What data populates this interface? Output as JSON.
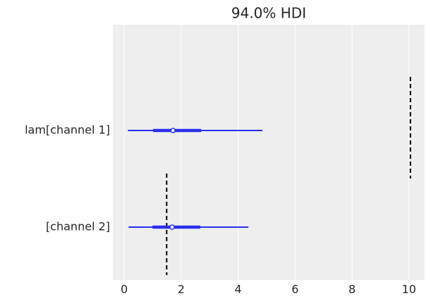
{
  "chart_data": {
    "type": "forest",
    "title": "94.0% HDI",
    "categories": [
      "lam[channel 1]",
      "[channel 2]"
    ],
    "hdi_low": [
      0.13,
      0.15
    ],
    "hdi_high": [
      4.85,
      4.36
    ],
    "quartile_low": [
      1.01,
      0.99
    ],
    "quartile_high": [
      2.7,
      2.67
    ],
    "median": [
      1.71,
      1.68
    ],
    "reference": [
      10.05,
      1.49
    ],
    "color": "#2a2eec",
    "xlim": [
      -0.4,
      10.55
    ],
    "xticks": [
      0,
      2,
      4,
      6,
      8,
      10
    ],
    "grid": true
  }
}
